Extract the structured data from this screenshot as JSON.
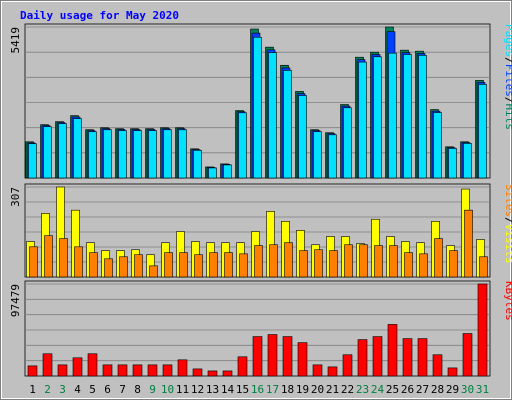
{
  "title": "Daily usage for May 2020",
  "legend_separator": "/",
  "categories": [
    "1",
    "2",
    "3",
    "4",
    "5",
    "6",
    "7",
    "8",
    "9",
    "10",
    "11",
    "12",
    "13",
    "14",
    "15",
    "16",
    "17",
    "18",
    "19",
    "20",
    "21",
    "22",
    "23",
    "24",
    "25",
    "26",
    "27",
    "28",
    "29",
    "30",
    "31"
  ],
  "category_colors": [
    "#000000",
    "#008040",
    "#008040",
    "#000000",
    "#000000",
    "#000000",
    "#000000",
    "#000000",
    "#008040",
    "#008040",
    "#000000",
    "#000000",
    "#000000",
    "#000000",
    "#000000",
    "#008040",
    "#008040",
    "#000000",
    "#000000",
    "#000000",
    "#000000",
    "#000000",
    "#008040",
    "#008040",
    "#000000",
    "#000000",
    "#000000",
    "#000000",
    "#000000",
    "#008040",
    "#008040"
  ],
  "chart_data": [
    {
      "type": "bar",
      "ylim": [
        0,
        5419
      ],
      "yticks": [
        5419
      ],
      "series": [
        {
          "name": "Hits",
          "color": "#00805c",
          "values": [
            1300,
            1915,
            2023,
            2240,
            1734,
            1806,
            1770,
            1770,
            1770,
            1806,
            1806,
            1048,
            397,
            506,
            2420,
            5347,
            4696,
            4046,
            3107,
            1734,
            1626,
            2637,
            4335,
            4516,
            5419,
            4588,
            4552,
            2457,
            1120,
            1300,
            3504
          ]
        },
        {
          "name": "Files",
          "color": "#0040ff",
          "values": [
            1260,
            1880,
            1990,
            2190,
            1700,
            1770,
            1740,
            1740,
            1740,
            1770,
            1770,
            1020,
            380,
            490,
            2380,
            5200,
            4600,
            3950,
            3030,
            1700,
            1590,
            2580,
            4250,
            4430,
            5250,
            4500,
            4470,
            2400,
            1090,
            1270,
            3430
          ]
        },
        {
          "name": "Pages",
          "color": "#00e0ff",
          "values": [
            1230,
            1840,
            1950,
            2130,
            1660,
            1730,
            1700,
            1700,
            1700,
            1730,
            1730,
            990,
            360,
            470,
            2340,
            5050,
            4500,
            3860,
            2960,
            1660,
            1550,
            2520,
            4160,
            4350,
            4480,
            4430,
            4400,
            2350,
            1060,
            1240,
            3360
          ]
        }
      ]
    },
    {
      "type": "bar",
      "ylim": [
        0,
        307
      ],
      "yticks": [
        307
      ],
      "series": [
        {
          "name": "Visits",
          "color": "#ffff00",
          "values": [
            121,
            217,
            307,
            228,
            117,
            90,
            90,
            93,
            76,
            117,
            155,
            121,
            117,
            117,
            117,
            155,
            224,
            190,
            159,
            110,
            138,
            138,
            114,
            197,
            138,
            121,
            117,
            190,
            107,
            300,
            128
          ]
        },
        {
          "name": "Sites",
          "color": "#ff8000",
          "values": [
            103,
            141,
            131,
            103,
            83,
            62,
            69,
            76,
            38,
            83,
            83,
            76,
            83,
            83,
            79,
            107,
            110,
            117,
            90,
            93,
            90,
            110,
            110,
            107,
            107,
            83,
            79,
            131,
            90,
            228,
            69
          ]
        }
      ]
    },
    {
      "type": "bar",
      "ylim": [
        0,
        97479
      ],
      "yticks": [
        97479
      ],
      "series": [
        {
          "name": "KBytes",
          "color": "#ff0000",
          "values": [
            10712,
            23566,
            11783,
            19282,
            23566,
            11783,
            11783,
            11783,
            11783,
            11783,
            17140,
            7500,
            5356,
            5356,
            20353,
            41777,
            43920,
            41777,
            35350,
            11783,
            9641,
            22495,
            38563,
            41777,
            54630,
            39634,
            39634,
            22495,
            8570,
            44991,
            97479
          ]
        }
      ]
    }
  ]
}
